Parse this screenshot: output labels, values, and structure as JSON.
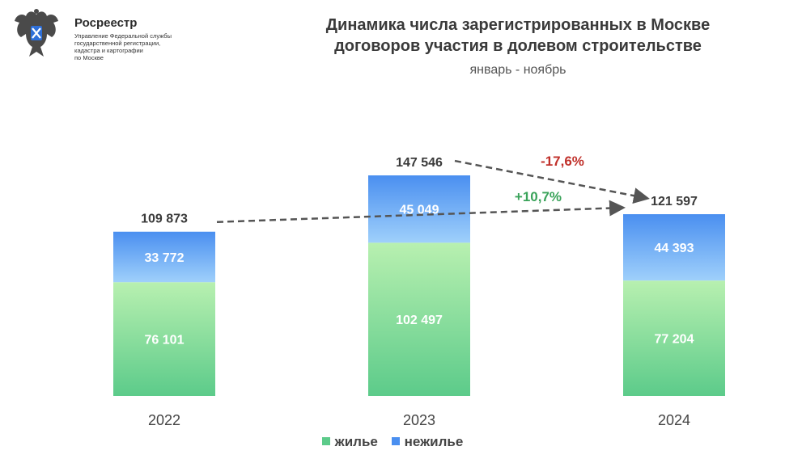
{
  "header": {
    "org_name": "Росреестр",
    "org_sub": "Управление Федеральной службы\nгосударственной регистрации,\nкадастра и картографии\nпо Москве",
    "logo_icon": "double-headed-eagle-emblem-icon"
  },
  "colors": {
    "residential_top": "#b8f0b0",
    "residential_bottom": "#5ccb8a",
    "nonresidential_top": "#4a8ff0",
    "nonresidential_bottom": "#9fd0fb",
    "arrow": "#555555",
    "negative": "#c0302a",
    "positive": "#3aa35a"
  },
  "chart_data": {
    "type": "bar",
    "stacked": true,
    "title": "Динамика числа зарегистрированных в Москве\nдоговоров участия в долевом строительстве",
    "subtitle": "январь - ноябрь",
    "categories": [
      "2022",
      "2023",
      "2024"
    ],
    "series": [
      {
        "name": "жилье",
        "values": [
          76101,
          102497,
          77204
        ]
      },
      {
        "name": "нежилье",
        "values": [
          33772,
          45049,
          44393
        ]
      }
    ],
    "value_labels": [
      [
        "76 101",
        "102 497",
        "77 204"
      ],
      [
        "33 772",
        "45 049",
        "44 393"
      ]
    ],
    "totals": [
      109873,
      147546,
      121597
    ],
    "total_labels": [
      "109 873",
      "147 546",
      "121 597"
    ],
    "annotations": [
      {
        "from": "2023",
        "to": "2024",
        "text": "-17,6%"
      },
      {
        "from": "2022",
        "to": "2024",
        "text": "+10,7%"
      }
    ],
    "legend_position": "bottom",
    "grid": false
  }
}
